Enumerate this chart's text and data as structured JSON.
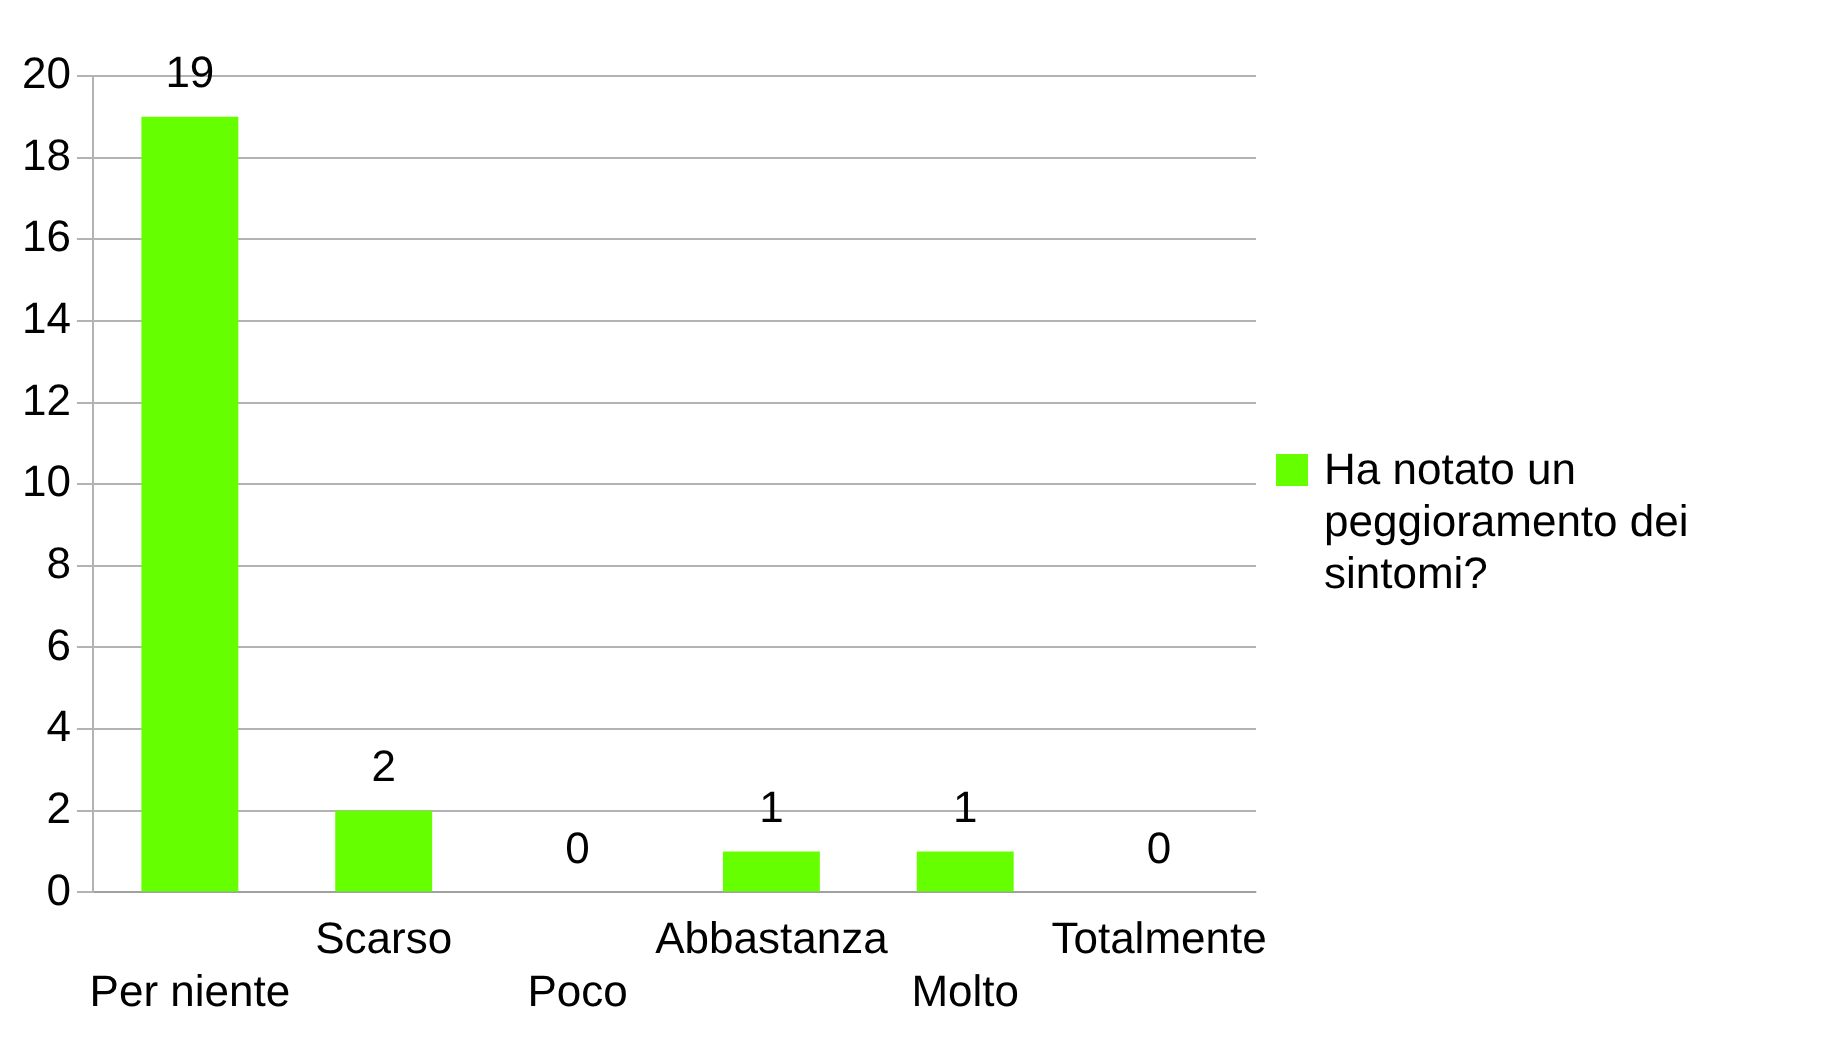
{
  "chart_data": {
    "type": "bar",
    "categories": [
      "Per niente",
      "Scarso",
      "Poco",
      "Abbastanza",
      "Molto",
      "Totalmente"
    ],
    "series": [
      {
        "name": "Ha notato un peggioramento dei sintomi?",
        "color": "#66ff00",
        "values": [
          19,
          2,
          0,
          1,
          1,
          0
        ]
      }
    ],
    "ylim": [
      0,
      20
    ],
    "yticks": [
      0,
      2,
      4,
      6,
      8,
      10,
      12,
      14,
      16,
      18,
      20
    ],
    "grid": "y",
    "legend": "right",
    "data_labels": true
  }
}
